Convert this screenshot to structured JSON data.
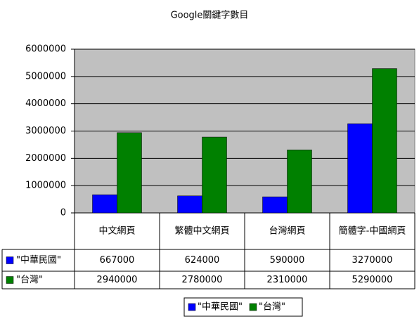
{
  "chart_data": {
    "type": "bar",
    "title": "Google關鍵字數目",
    "categories": [
      "中文網頁",
      "繁體中文網頁",
      "台灣網頁",
      "簡體字-中國網頁"
    ],
    "series": [
      {
        "name": "\"中華民國\"",
        "color": "#0000ff",
        "values": [
          667000,
          624000,
          590000,
          3270000
        ]
      },
      {
        "name": "\"台灣\"",
        "color": "#008000",
        "values": [
          2940000,
          2780000,
          2310000,
          5290000
        ]
      }
    ],
    "ylim": [
      0,
      6000000
    ],
    "yticks": [
      0,
      1000000,
      2000000,
      3000000,
      4000000,
      5000000,
      6000000
    ],
    "grid": true,
    "plot_background": "#c0c0c0",
    "legend": "bottom"
  }
}
